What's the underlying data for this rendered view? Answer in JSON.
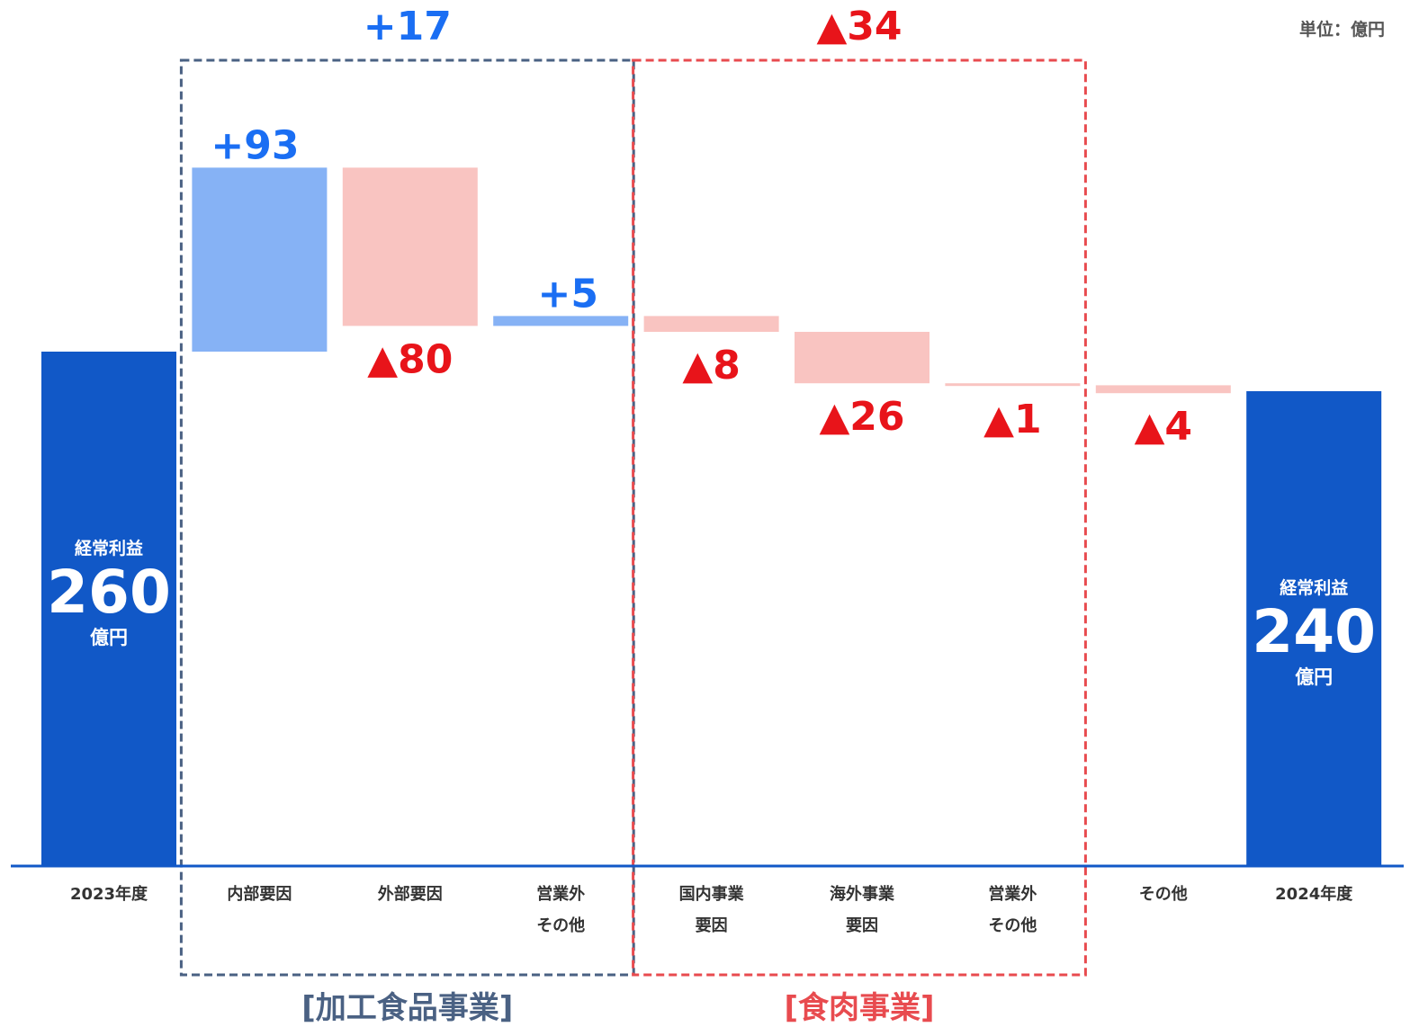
{
  "unit": "単位：億円",
  "colors": {
    "total": "#1158C7",
    "positive": "#86B2F5",
    "negative": "#F9C4C1",
    "positive_label": "#1A6EF3",
    "negative_label": "#E8141A",
    "group1_border": "#4A6183",
    "group2_border": "#E84B4F",
    "axis": "#1158C7"
  },
  "chart_data": {
    "type": "bar",
    "subtype": "waterfall",
    "title": "",
    "xlabel": "",
    "ylabel": "",
    "unit": "億円",
    "ylim": [
      0,
      380
    ],
    "categories": [
      "2023年度",
      "内部要因",
      "外部要因",
      "営業外\nその他",
      "国内事業\n要因",
      "海外事業\n要因",
      "営業外\nその他",
      "その他",
      "2024年度"
    ],
    "values": [
      260,
      93,
      -80,
      5,
      -8,
      -26,
      -1,
      -4,
      240
    ],
    "value_labels": [
      "260",
      "+93",
      "▲80",
      "+5",
      "▲8",
      "▲26",
      "▲1",
      "▲4",
      "240"
    ],
    "bar_kinds": [
      "total",
      "delta",
      "delta",
      "delta",
      "delta",
      "delta",
      "delta",
      "delta",
      "total"
    ],
    "total_bar_text": {
      "top": "経常利益",
      "bottom": "億円"
    },
    "groups": [
      {
        "name": "[加工食品事業]",
        "subtotal": "+17",
        "from_index": 1,
        "to_index": 3
      },
      {
        "name": "[食肉事業]",
        "subtotal": "▲34",
        "from_index": 4,
        "to_index": 6
      }
    ]
  }
}
